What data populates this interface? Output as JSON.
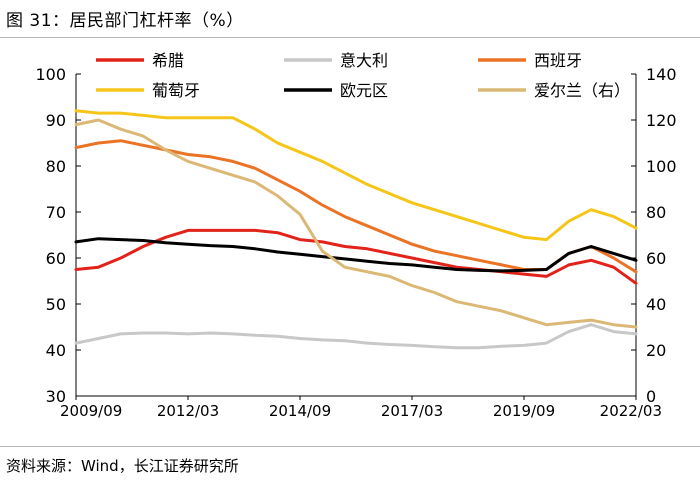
{
  "title": "图 31：居民部门杠杆率（%）",
  "source": "资料来源：Wind，长江证券研究所",
  "chart_data": {
    "type": "line",
    "title": "居民部门杠杆率（%）",
    "x_labels": [
      "2009/09",
      "2012/03",
      "2014/09",
      "2017/03",
      "2019/09",
      "2022/03"
    ],
    "x_range": [
      2009.75,
      2022.25
    ],
    "y_left": {
      "min": 30,
      "max": 100,
      "ticks": [
        30,
        40,
        50,
        60,
        70,
        80,
        90,
        100
      ]
    },
    "y_right": {
      "min": 0,
      "max": 140,
      "ticks": [
        0,
        20,
        40,
        60,
        80,
        100,
        120,
        140
      ]
    },
    "legend_position": "top",
    "series": [
      {
        "name": "希腊",
        "color": "#e2231a",
        "axis": "left",
        "x": [
          2009.75,
          2010.25,
          2010.75,
          2011.25,
          2011.75,
          2012.25,
          2012.75,
          2013.25,
          2013.75,
          2014.25,
          2014.75,
          2015.25,
          2015.75,
          2016.25,
          2016.75,
          2017.25,
          2017.75,
          2018.25,
          2018.75,
          2019.25,
          2019.75,
          2020.25,
          2020.75,
          2021.25,
          2021.75,
          2022.25
        ],
        "values": [
          57.5,
          58.0,
          60.0,
          62.5,
          64.5,
          66.0,
          66.0,
          66.0,
          66.0,
          65.5,
          64.0,
          63.5,
          62.5,
          62.0,
          61.0,
          60.0,
          59.0,
          58.0,
          57.5,
          57.0,
          56.5,
          56.0,
          58.5,
          59.5,
          58.0,
          54.5
        ]
      },
      {
        "name": "意大利",
        "color": "#c8c8c8",
        "axis": "left",
        "x": [
          2009.75,
          2010.25,
          2010.75,
          2011.25,
          2011.75,
          2012.25,
          2012.75,
          2013.25,
          2013.75,
          2014.25,
          2014.75,
          2015.25,
          2015.75,
          2016.25,
          2016.75,
          2017.25,
          2017.75,
          2018.25,
          2018.75,
          2019.25,
          2019.75,
          2020.25,
          2020.75,
          2021.25,
          2021.75,
          2022.25
        ],
        "values": [
          41.5,
          42.5,
          43.5,
          43.7,
          43.7,
          43.5,
          43.7,
          43.5,
          43.2,
          43.0,
          42.5,
          42.2,
          42.0,
          41.5,
          41.2,
          41.0,
          40.7,
          40.5,
          40.5,
          40.8,
          41.0,
          41.5,
          44.0,
          45.5,
          44.0,
          43.5
        ]
      },
      {
        "name": "西班牙",
        "color": "#ea7325",
        "axis": "left",
        "x": [
          2009.75,
          2010.25,
          2010.75,
          2011.25,
          2011.75,
          2012.25,
          2012.75,
          2013.25,
          2013.75,
          2014.25,
          2014.75,
          2015.25,
          2015.75,
          2016.25,
          2016.75,
          2017.25,
          2017.75,
          2018.25,
          2018.75,
          2019.25,
          2019.75,
          2020.25,
          2020.75,
          2021.25,
          2021.75,
          2022.25
        ],
        "values": [
          84.0,
          85.0,
          85.5,
          84.5,
          83.5,
          82.5,
          82.0,
          81.0,
          79.5,
          77.0,
          74.5,
          71.5,
          69.0,
          67.0,
          65.0,
          63.0,
          61.5,
          60.5,
          59.5,
          58.5,
          57.5,
          57.5,
          61.0,
          62.5,
          60.0,
          57.0
        ]
      },
      {
        "name": "葡萄牙",
        "color": "#f5c518",
        "axis": "left",
        "x": [
          2009.75,
          2010.25,
          2010.75,
          2011.25,
          2011.75,
          2012.25,
          2012.75,
          2013.25,
          2013.75,
          2014.25,
          2014.75,
          2015.25,
          2015.75,
          2016.25,
          2016.75,
          2017.25,
          2017.75,
          2018.25,
          2018.75,
          2019.25,
          2019.75,
          2020.25,
          2020.75,
          2021.25,
          2021.75,
          2022.25
        ],
        "values": [
          92.0,
          91.5,
          91.5,
          91.0,
          90.5,
          90.5,
          90.5,
          90.5,
          88.0,
          85.0,
          83.0,
          81.0,
          78.5,
          76.0,
          74.0,
          72.0,
          70.5,
          69.0,
          67.5,
          66.0,
          64.5,
          64.0,
          68.0,
          70.5,
          69.0,
          66.5
        ]
      },
      {
        "name": "欧元区",
        "color": "#000000",
        "axis": "left",
        "x": [
          2009.75,
          2010.25,
          2010.75,
          2011.25,
          2011.75,
          2012.25,
          2012.75,
          2013.25,
          2013.75,
          2014.25,
          2014.75,
          2015.25,
          2015.75,
          2016.25,
          2016.75,
          2017.25,
          2017.75,
          2018.25,
          2018.75,
          2019.25,
          2019.75,
          2020.25,
          2020.75,
          2021.25,
          2021.75,
          2022.25
        ],
        "values": [
          63.5,
          64.2,
          64.0,
          63.8,
          63.3,
          63.0,
          62.7,
          62.5,
          62.0,
          61.3,
          60.8,
          60.3,
          59.8,
          59.3,
          58.8,
          58.5,
          58.0,
          57.5,
          57.3,
          57.2,
          57.3,
          57.5,
          61.0,
          62.5,
          61.0,
          59.5
        ]
      },
      {
        "name": "爱尔兰（右）",
        "color": "#dbb875",
        "axis": "right",
        "x": [
          2009.75,
          2010.25,
          2010.75,
          2011.25,
          2011.75,
          2012.25,
          2012.75,
          2013.25,
          2013.75,
          2014.25,
          2014.75,
          2015.25,
          2015.75,
          2016.25,
          2016.75,
          2017.25,
          2017.75,
          2018.25,
          2018.75,
          2019.25,
          2019.75,
          2020.25,
          2020.75,
          2021.25,
          2021.75,
          2022.25
        ],
        "values": [
          118.0,
          120.0,
          116.0,
          113.0,
          107.0,
          102.0,
          99.0,
          96.0,
          93.0,
          87.0,
          79.0,
          63.0,
          56.0,
          54.0,
          52.0,
          48.0,
          45.0,
          41.0,
          39.0,
          37.0,
          34.0,
          31.0,
          32.0,
          33.0,
          31.0,
          30.0
        ]
      }
    ]
  }
}
